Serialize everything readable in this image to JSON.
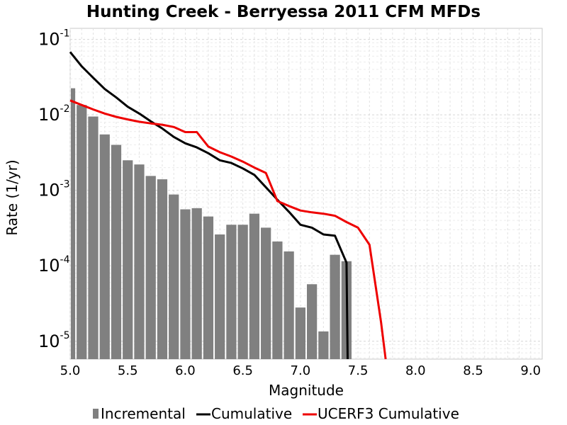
{
  "chart_data": {
    "type": "bar+line",
    "title": "Hunting Creek - Berryessa 2011 CFM MFDs",
    "xlabel": "Magnitude",
    "ylabel": "Rate (1/yr)",
    "x_scale": "linear",
    "y_scale": "log",
    "xlim": [
      5.0,
      9.1
    ],
    "ylim": [
      5.8e-06,
      0.14
    ],
    "x_ticks": [
      "5.0",
      "5.5",
      "6.0",
      "6.5",
      "7.0",
      "7.5",
      "8.0",
      "8.5",
      "9.0"
    ],
    "y_ticks": [
      {
        "base": "10",
        "exp": "-1",
        "value": 0.1
      },
      {
        "base": "10",
        "exp": "-2",
        "value": 0.01
      },
      {
        "base": "10",
        "exp": "-3",
        "value": 0.001
      },
      {
        "base": "10",
        "exp": "-4",
        "value": 0.0001
      },
      {
        "base": "10",
        "exp": "-5",
        "value": 1e-05
      }
    ],
    "grid": true,
    "legend_position": "bottom",
    "series": [
      {
        "name": "Incremental",
        "kind": "bar",
        "color": "#808080",
        "bar_width": 0.1,
        "x": [
          5.0,
          5.1,
          5.2,
          5.3,
          5.4,
          5.5,
          5.6,
          5.7,
          5.8,
          5.9,
          6.0,
          6.1,
          6.2,
          6.3,
          6.4,
          6.5,
          6.6,
          6.7,
          6.8,
          6.9,
          7.0,
          7.1,
          7.2,
          7.3,
          7.4
        ],
        "y": [
          0.0225,
          0.0135,
          0.0095,
          0.0055,
          0.004,
          0.0025,
          0.0022,
          0.00155,
          0.0014,
          0.00088,
          0.00056,
          0.00058,
          0.00045,
          0.00026,
          0.00035,
          0.00035,
          0.00049,
          0.00032,
          0.00021,
          0.000155,
          2.8e-05,
          5.7e-05,
          1.35e-05,
          0.00014,
          0.000115
        ]
      },
      {
        "name": "Cumulative",
        "kind": "line",
        "color": "#000000",
        "x": [
          5.0,
          5.1,
          5.2,
          5.3,
          5.4,
          5.5,
          5.6,
          5.7,
          5.8,
          5.9,
          6.0,
          6.1,
          6.2,
          6.3,
          6.4,
          6.5,
          6.6,
          6.7,
          6.8,
          6.9,
          7.0,
          7.1,
          7.2,
          7.3,
          7.4,
          7.41
        ],
        "y": [
          0.068,
          0.044,
          0.031,
          0.022,
          0.017,
          0.0128,
          0.0104,
          0.0082,
          0.0066,
          0.0051,
          0.0042,
          0.0037,
          0.0031,
          0.0025,
          0.0023,
          0.00195,
          0.0016,
          0.0011,
          0.00075,
          0.00052,
          0.00035,
          0.00032,
          0.00026,
          0.00025,
          0.00011,
          5.5e-06
        ]
      },
      {
        "name": "UCERF3 Cumulative",
        "kind": "line",
        "color": "#ee0000",
        "x": [
          5.0,
          5.1,
          5.2,
          5.3,
          5.4,
          5.5,
          5.6,
          5.7,
          5.8,
          5.9,
          6.0,
          6.1,
          6.2,
          6.3,
          6.4,
          6.5,
          6.6,
          6.7,
          6.8,
          6.9,
          7.0,
          7.1,
          7.2,
          7.3,
          7.4,
          7.5,
          7.6,
          7.7,
          7.74
        ],
        "y": [
          0.0155,
          0.0135,
          0.0118,
          0.0104,
          0.0094,
          0.0087,
          0.0081,
          0.0077,
          0.0074,
          0.0069,
          0.0059,
          0.0059,
          0.0038,
          0.0032,
          0.0028,
          0.0024,
          0.002,
          0.0017,
          0.00072,
          0.00062,
          0.00054,
          0.00051,
          0.00049,
          0.00046,
          0.00038,
          0.00032,
          0.00019,
          1.8e-05,
          5.5e-06
        ]
      }
    ]
  }
}
